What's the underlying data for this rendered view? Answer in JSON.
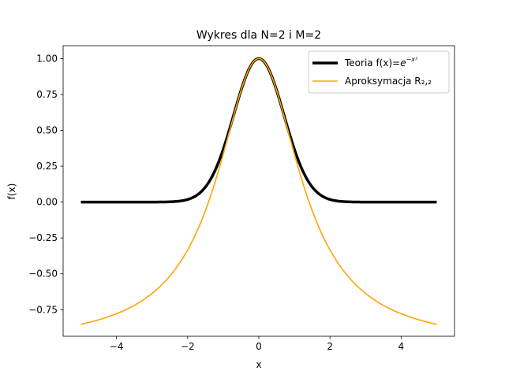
{
  "chart_data": {
    "type": "line",
    "title": "Wykres dla N=2 i M=2",
    "xlabel": "x",
    "ylabel": "f(x)",
    "xlim": [
      -5.5,
      5.5
    ],
    "ylim": [
      -0.935,
      1.09
    ],
    "xticks": [
      -4,
      -2,
      0,
      2,
      4
    ],
    "xtick_labels": [
      "−4",
      "−2",
      "0",
      "2",
      "4"
    ],
    "yticks": [
      1.0,
      0.75,
      0.5,
      0.25,
      0.0,
      -0.25,
      -0.5,
      -0.75
    ],
    "ytick_labels": [
      "1.00",
      "0.75",
      "0.50",
      "0.25",
      "0.00",
      "−0.25",
      "−0.50",
      "−0.75"
    ],
    "grid": false,
    "legend_position": "top-right",
    "series": [
      {
        "name": "Teoria f(x)=e^{-x²}",
        "legend_main": "Teoria f(x)=",
        "legend_base": "e",
        "legend_exp": "−x²",
        "color": "#000000",
        "formula": "exp(-x^2)",
        "x": [
          -5,
          -4,
          -3,
          -2.5,
          -2,
          -1.75,
          -1.5,
          -1.25,
          -1,
          -0.75,
          -0.5,
          -0.25,
          0,
          0.25,
          0.5,
          0.75,
          1,
          1.25,
          1.5,
          1.75,
          2,
          2.5,
          3,
          4,
          5
        ],
        "y": [
          0.0,
          0.0,
          0.0001,
          0.0019,
          0.0183,
          0.0468,
          0.1054,
          0.2096,
          0.3679,
          0.5698,
          0.7788,
          0.9394,
          1.0,
          0.9394,
          0.7788,
          0.5698,
          0.3679,
          0.2096,
          0.1054,
          0.0468,
          0.0183,
          0.0019,
          0.0001,
          0.0,
          0.0
        ]
      },
      {
        "name": "Aproksymacja R₂,₂",
        "legend_label": "Aproksymacja R₂,₂",
        "color": "#ffa500",
        "formula": "(1 - x^2/2) / (1 + x^2/2)",
        "x": [
          -5,
          -4,
          -3,
          -2.5,
          -2,
          -1.75,
          -1.5,
          -1.25,
          -1,
          -0.75,
          -0.5,
          -0.25,
          0,
          0.25,
          0.5,
          0.75,
          1,
          1.25,
          1.5,
          1.75,
          2,
          2.5,
          3,
          4,
          5
        ],
        "y": [
          -0.8519,
          -0.7778,
          -0.6364,
          -0.5152,
          -0.3333,
          -0.2101,
          -0.0588,
          0.1228,
          0.3333,
          0.561,
          0.7778,
          0.9394,
          1.0,
          0.9394,
          0.7778,
          0.561,
          0.3333,
          0.1228,
          -0.0588,
          -0.2101,
          -0.3333,
          -0.5152,
          -0.6364,
          -0.7778,
          -0.8519
        ]
      }
    ]
  }
}
